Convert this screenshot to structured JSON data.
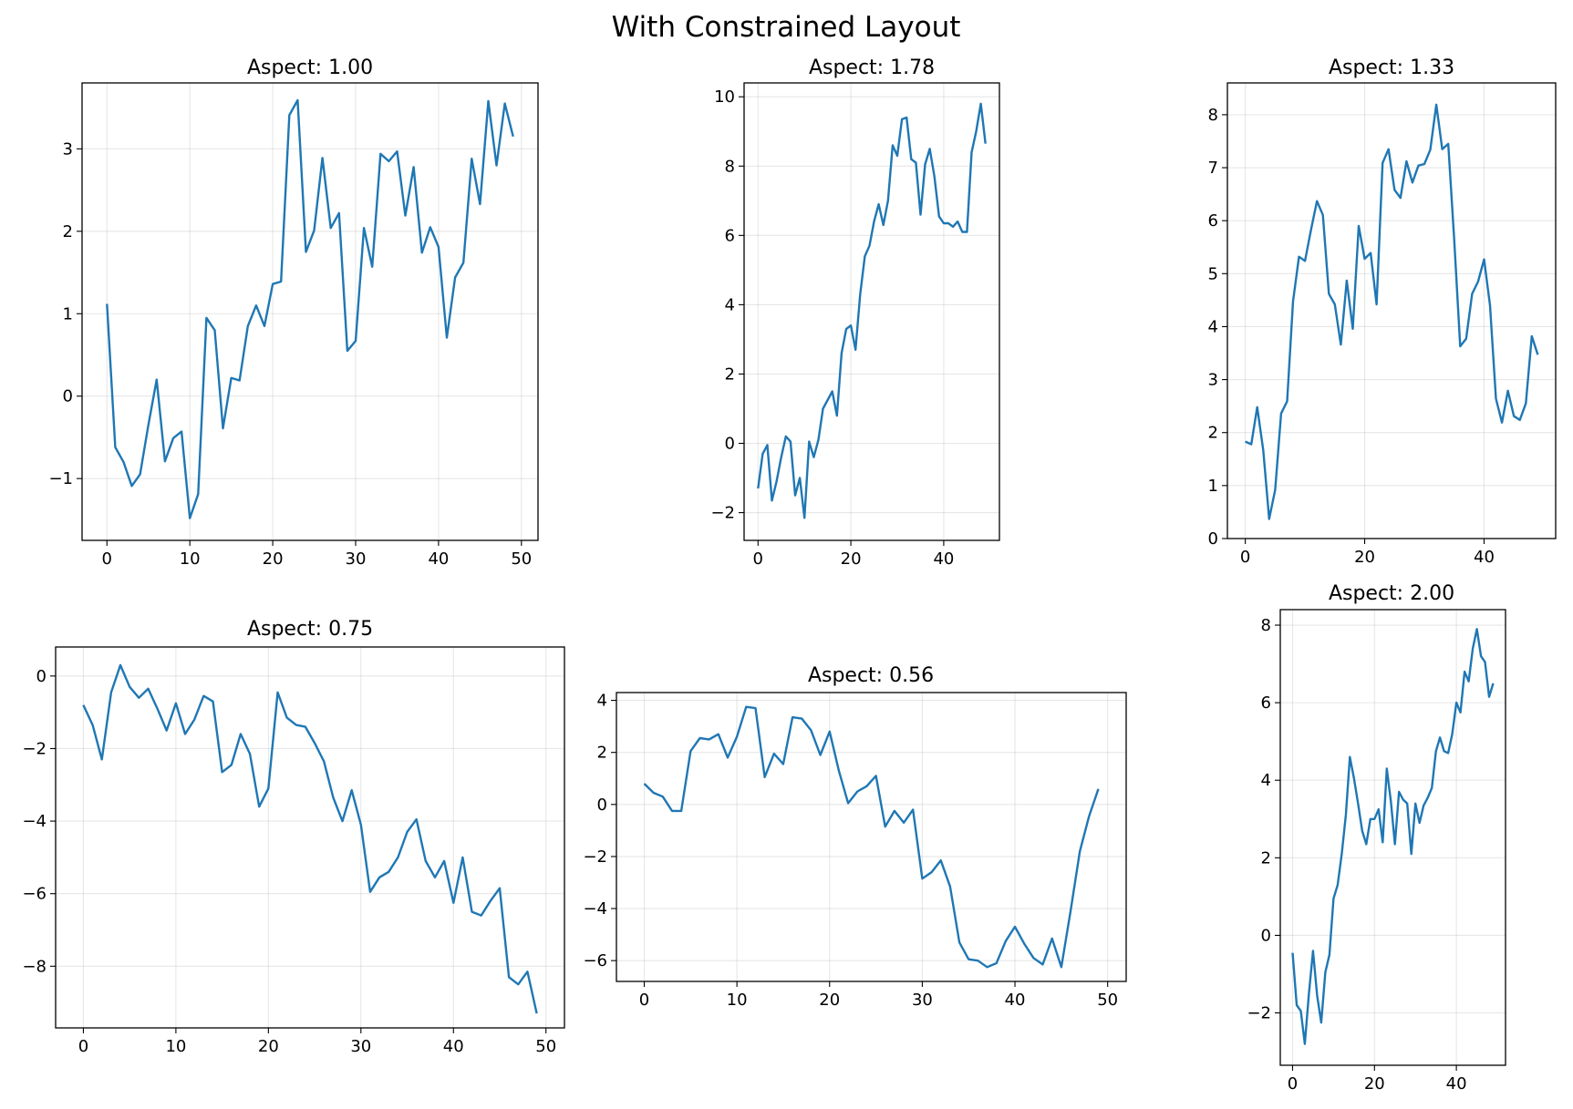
{
  "figure": {
    "title": "With Constrained Layout"
  },
  "chart_data": [
    {
      "type": "line",
      "title": "Aspect: 1.00",
      "grid": true,
      "color": "#1f77b4",
      "xlim": [
        -3,
        52
      ],
      "ylim": [
        -1.75,
        3.8
      ],
      "xticks": [
        0,
        10,
        20,
        30,
        40,
        50
      ],
      "yticks": [
        -1,
        0,
        1,
        2,
        3
      ],
      "x": [
        0,
        1,
        2,
        3,
        4,
        5,
        6,
        7,
        8,
        9,
        10,
        11,
        12,
        13,
        14,
        15,
        16,
        17,
        18,
        19,
        20,
        21,
        22,
        23,
        24,
        25,
        26,
        27,
        28,
        29,
        30,
        31,
        32,
        33,
        34,
        35,
        36,
        37,
        38,
        39,
        40,
        41,
        42,
        43,
        44,
        45,
        46,
        47,
        48,
        49
      ],
      "y": [
        1.12,
        -0.62,
        -0.8,
        -1.09,
        -0.95,
        -0.35,
        0.2,
        -0.79,
        -0.51,
        -0.43,
        -1.48,
        -1.19,
        0.95,
        0.8,
        -0.39,
        0.22,
        0.19,
        0.85,
        1.1,
        0.85,
        1.36,
        1.39,
        3.41,
        3.59,
        1.75,
        2.01,
        2.89,
        2.04,
        2.22,
        0.55,
        0.67,
        2.04,
        1.57,
        2.94,
        2.85,
        2.97,
        2.19,
        2.78,
        1.74,
        2.05,
        1.81,
        0.71,
        1.44,
        1.62,
        2.88,
        2.33,
        3.58,
        2.8,
        3.55,
        3.15
      ]
    },
    {
      "type": "line",
      "title": "Aspect: 1.78",
      "grid": true,
      "color": "#1f77b4",
      "xlim": [
        -3,
        52
      ],
      "ylim": [
        -2.8,
        10.4
      ],
      "xticks": [
        0,
        20,
        40
      ],
      "yticks": [
        -2,
        0,
        2,
        4,
        6,
        8,
        10
      ],
      "x": [
        0,
        1,
        2,
        3,
        4,
        5,
        6,
        7,
        8,
        9,
        10,
        11,
        12,
        13,
        14,
        15,
        16,
        17,
        18,
        19,
        20,
        21,
        22,
        23,
        24,
        25,
        26,
        27,
        28,
        29,
        30,
        31,
        32,
        33,
        34,
        35,
        36,
        37,
        38,
        39,
        40,
        41,
        42,
        43,
        44,
        45,
        46,
        47,
        48,
        49
      ],
      "y": [
        -1.3,
        -0.3,
        -0.05,
        -1.65,
        -1.1,
        -0.4,
        0.2,
        0.05,
        -1.5,
        -1.0,
        -2.15,
        0.05,
        -0.4,
        0.1,
        1.0,
        1.25,
        1.5,
        0.8,
        2.6,
        3.3,
        3.4,
        2.7,
        4.3,
        5.4,
        5.7,
        6.4,
        6.9,
        6.3,
        7.0,
        8.6,
        8.3,
        9.35,
        9.4,
        8.2,
        8.1,
        6.6,
        8.05,
        8.5,
        7.7,
        6.55,
        6.35,
        6.35,
        6.25,
        6.4,
        6.1,
        6.1,
        8.4,
        9.0,
        9.8,
        8.65
      ]
    },
    {
      "type": "line",
      "title": "Aspect: 1.33",
      "grid": true,
      "color": "#1f77b4",
      "xlim": [
        -3,
        52
      ],
      "ylim": [
        0,
        8.6
      ],
      "xticks": [
        0,
        20,
        40
      ],
      "yticks": [
        0,
        1,
        2,
        3,
        4,
        5,
        6,
        7,
        8
      ],
      "x": [
        0,
        1,
        2,
        3,
        4,
        5,
        6,
        7,
        8,
        9,
        10,
        11,
        12,
        13,
        14,
        15,
        16,
        17,
        18,
        19,
        20,
        21,
        22,
        23,
        24,
        25,
        26,
        27,
        28,
        29,
        30,
        31,
        32,
        33,
        34,
        35,
        36,
        37,
        38,
        39,
        40,
        41,
        42,
        43,
        44,
        45,
        46,
        47,
        48,
        49
      ],
      "y": [
        1.83,
        1.78,
        2.48,
        1.67,
        0.37,
        0.92,
        2.36,
        2.59,
        4.48,
        5.32,
        5.24,
        5.82,
        6.37,
        6.11,
        4.62,
        4.42,
        3.66,
        4.87,
        3.96,
        5.9,
        5.28,
        5.39,
        4.42,
        7.09,
        7.35,
        6.58,
        6.43,
        7.12,
        6.72,
        7.04,
        7.07,
        7.34,
        8.19,
        7.35,
        7.45,
        5.65,
        3.63,
        3.77,
        4.62,
        4.85,
        5.27,
        4.4,
        2.64,
        2.19,
        2.79,
        2.31,
        2.24,
        2.55,
        3.82,
        3.47
      ]
    },
    {
      "type": "line",
      "title": "Aspect: 0.75",
      "grid": true,
      "color": "#1f77b4",
      "xlim": [
        -3,
        52
      ],
      "ylim": [
        -9.7,
        0.8
      ],
      "xticks": [
        0,
        10,
        20,
        30,
        40,
        50
      ],
      "yticks": [
        -8,
        -6,
        -4,
        -2,
        0
      ],
      "x": [
        0,
        1,
        2,
        3,
        4,
        5,
        6,
        7,
        8,
        9,
        10,
        11,
        12,
        13,
        14,
        15,
        16,
        17,
        18,
        19,
        20,
        21,
        22,
        23,
        24,
        25,
        26,
        27,
        28,
        29,
        30,
        31,
        32,
        33,
        34,
        35,
        36,
        37,
        38,
        39,
        40,
        41,
        42,
        43,
        44,
        45,
        46,
        47,
        48,
        49
      ],
      "y": [
        -0.8,
        -1.35,
        -2.3,
        -0.45,
        0.3,
        -0.3,
        -0.6,
        -0.35,
        -0.9,
        -1.5,
        -0.75,
        -1.6,
        -1.2,
        -0.55,
        -0.7,
        -2.65,
        -2.45,
        -1.6,
        -2.15,
        -3.6,
        -3.1,
        -0.45,
        -1.15,
        -1.35,
        -1.4,
        -1.85,
        -2.35,
        -3.35,
        -4.0,
        -3.15,
        -4.1,
        -5.95,
        -5.55,
        -5.4,
        -5.0,
        -4.3,
        -3.95,
        -5.1,
        -5.55,
        -5.1,
        -6.25,
        -5.0,
        -6.5,
        -6.6,
        -6.2,
        -5.85,
        -8.3,
        -8.5,
        -8.15,
        -9.3
      ]
    },
    {
      "type": "line",
      "title": "Aspect: 0.56",
      "grid": true,
      "color": "#1f77b4",
      "xlim": [
        -3,
        52
      ],
      "ylim": [
        -6.8,
        4.3
      ],
      "xticks": [
        0,
        10,
        20,
        30,
        40,
        50
      ],
      "yticks": [
        -6,
        -4,
        -2,
        0,
        2,
        4
      ],
      "x": [
        0,
        1,
        2,
        3,
        4,
        5,
        6,
        7,
        8,
        9,
        10,
        11,
        12,
        13,
        14,
        15,
        16,
        17,
        18,
        19,
        20,
        21,
        22,
        23,
        24,
        25,
        26,
        27,
        28,
        29,
        30,
        31,
        32,
        33,
        34,
        35,
        36,
        37,
        38,
        39,
        40,
        41,
        42,
        43,
        44,
        45,
        46,
        47,
        48,
        49
      ],
      "y": [
        0.8,
        0.45,
        0.3,
        -0.25,
        -0.25,
        2.05,
        2.55,
        2.5,
        2.7,
        1.8,
        2.6,
        3.75,
        3.7,
        1.05,
        1.95,
        1.55,
        3.35,
        3.3,
        2.85,
        1.9,
        2.8,
        1.3,
        0.05,
        0.5,
        0.7,
        1.1,
        -0.85,
        -0.25,
        -0.7,
        -0.2,
        -2.85,
        -2.6,
        -2.15,
        -3.15,
        -5.3,
        -5.95,
        -6.0,
        -6.25,
        -6.1,
        -5.25,
        -4.7,
        -5.35,
        -5.9,
        -6.15,
        -5.15,
        -6.25,
        -4.1,
        -1.8,
        -0.45,
        0.6
      ]
    },
    {
      "type": "line",
      "title": "Aspect: 2.00",
      "grid": true,
      "color": "#1f77b4",
      "xlim": [
        -3,
        52
      ],
      "ylim": [
        -3.35,
        8.4
      ],
      "xticks": [
        0,
        20,
        40
      ],
      "yticks": [
        -2,
        0,
        2,
        4,
        6,
        8
      ],
      "x": [
        0,
        1,
        2,
        3,
        4,
        5,
        6,
        7,
        8,
        9,
        10,
        11,
        12,
        13,
        14,
        15,
        16,
        17,
        18,
        19,
        20,
        21,
        22,
        23,
        24,
        25,
        26,
        27,
        28,
        29,
        30,
        31,
        32,
        33,
        34,
        35,
        36,
        37,
        38,
        39,
        40,
        41,
        42,
        43,
        44,
        45,
        46,
        47,
        48,
        49
      ],
      "y": [
        -0.45,
        -1.8,
        -1.95,
        -2.8,
        -1.5,
        -0.4,
        -1.55,
        -2.25,
        -0.95,
        -0.5,
        0.95,
        1.3,
        2.1,
        3.1,
        4.6,
        4.05,
        3.4,
        2.7,
        2.35,
        3.0,
        3.0,
        3.25,
        2.4,
        4.3,
        3.45,
        2.35,
        3.7,
        3.5,
        3.4,
        2.1,
        3.4,
        2.9,
        3.35,
        3.55,
        3.8,
        4.75,
        5.1,
        4.75,
        4.7,
        5.2,
        6.0,
        5.75,
        6.8,
        6.55,
        7.4,
        7.9,
        7.2,
        7.05,
        6.15,
        6.5
      ]
    }
  ]
}
